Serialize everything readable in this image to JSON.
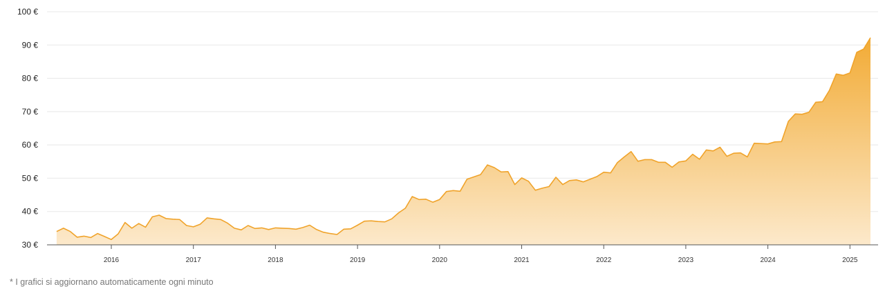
{
  "chart_data": {
    "type": "area",
    "title": "",
    "xlabel": "",
    "ylabel": "",
    "ylim": [
      30,
      100
    ],
    "y_ticks": [
      "30 €",
      "40 €",
      "50 €",
      "60 €",
      "70 €",
      "80 €",
      "90 €",
      "100 €"
    ],
    "y_tick_values": [
      30,
      40,
      50,
      60,
      70,
      80,
      90,
      100
    ],
    "x_ticks": [
      "2016",
      "2017",
      "2018",
      "2019",
      "2020",
      "2021",
      "2022",
      "2023",
      "2024",
      "2025"
    ],
    "grid": "horizontal",
    "colors": {
      "line": "#f0a32a",
      "fill_top": "#f2ab35",
      "fill_bottom": "#fce9cb",
      "grid": "#e8e8e8"
    },
    "start": "2015-05",
    "frequency": "monthly",
    "values": [
      34,
      35,
      34,
      32.3,
      32.6,
      32.2,
      33.4,
      32.5,
      31.6,
      33.3,
      36.7,
      35,
      36.4,
      35.3,
      38.4,
      38.9,
      37.9,
      37.7,
      37.6,
      35.8,
      35.4,
      36.2,
      38.1,
      37.8,
      37.6,
      36.5,
      35,
      34.5,
      35.8,
      34.9,
      35.1,
      34.6,
      35.1,
      35,
      34.9,
      34.7,
      35.2,
      35.9,
      34.6,
      33.8,
      33.4,
      33.1,
      34.7,
      34.8,
      35.9,
      37.1,
      37.2,
      37,
      36.9,
      37.8,
      39.6,
      41,
      44.5,
      43.6,
      43.7,
      42.8,
      43.6,
      46,
      46.3,
      46.1,
      49.7,
      50.4,
      51.1,
      54,
      53.2,
      51.9,
      52,
      48.1,
      50.1,
      49.1,
      46.4,
      47,
      47.5,
      50.3,
      48.1,
      49.3,
      49.5,
      48.9,
      49.7,
      50.5,
      51.8,
      51.6,
      54.7,
      56.4,
      58,
      55.1,
      55.6,
      55.6,
      54.8,
      54.8,
      53.3,
      54.9,
      55.2,
      57.2,
      55.7,
      58.5,
      58.2,
      59.3,
      56.6,
      57.5,
      57.6,
      56.4,
      60.5,
      60.4,
      60.3,
      60.9,
      61,
      67.1,
      69.3,
      69.2,
      69.8,
      72.8,
      73,
      76.4,
      81.3,
      80.9,
      81.6,
      87.8,
      88.8,
      92.2
    ]
  },
  "footnote": "* I grafici si aggiornano automaticamente ogni minuto"
}
